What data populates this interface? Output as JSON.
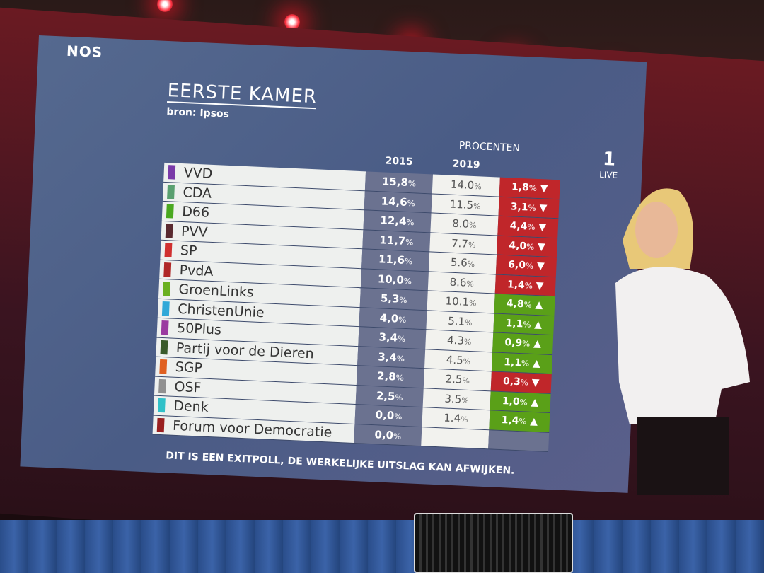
{
  "channel": {
    "logo": "NOS",
    "badge": "LIVE"
  },
  "chart_data": {
    "type": "table",
    "title": "EERSTE KAMER",
    "subtitle": "bron: Ipsos",
    "group_header": "PROCENTEN",
    "columns": [
      "2015",
      "2019"
    ],
    "rows": [
      {
        "party": "VVD",
        "color": "#7a3aa8",
        "y2015": "15,8",
        "y2019": "14.0",
        "diff": "1,8",
        "dir": "down"
      },
      {
        "party": "CDA",
        "color": "#5aa070",
        "y2015": "14,6",
        "y2019": "11.5",
        "diff": "3,1",
        "dir": "down"
      },
      {
        "party": "D66",
        "color": "#4aa820",
        "y2015": "12,4",
        "y2019": "8.0",
        "diff": "4,4",
        "dir": "down"
      },
      {
        "party": "PVV",
        "color": "#5a2a30",
        "y2015": "11,7",
        "y2019": "7.7",
        "diff": "4,0",
        "dir": "down"
      },
      {
        "party": "SP",
        "color": "#d03030",
        "y2015": "11,6",
        "y2019": "5.6",
        "diff": "6,0",
        "dir": "down"
      },
      {
        "party": "PvdA",
        "color": "#b02828",
        "y2015": "10,0",
        "y2019": "8.6",
        "diff": "1,4",
        "dir": "down"
      },
      {
        "party": "GroenLinks",
        "color": "#6ab020",
        "y2015": "5,3",
        "y2019": "10.1",
        "diff": "4,8",
        "dir": "up"
      },
      {
        "party": "ChristenUnie",
        "color": "#30a8d8",
        "y2015": "4,0",
        "y2019": "5.1",
        "diff": "1,1",
        "dir": "up"
      },
      {
        "party": "50Plus",
        "color": "#9a3aa0",
        "y2015": "3,4",
        "y2019": "4.3",
        "diff": "0,9",
        "dir": "up"
      },
      {
        "party": "Partij voor de Dieren",
        "color": "#3a5a2a",
        "y2015": "3,4",
        "y2019": "4.5",
        "diff": "1,1",
        "dir": "up"
      },
      {
        "party": "SGP",
        "color": "#e06020",
        "y2015": "2,8",
        "y2019": "2.5",
        "diff": "0,3",
        "dir": "down"
      },
      {
        "party": "OSF",
        "color": "#909090",
        "y2015": "2,5",
        "y2019": "3.5",
        "diff": "1,0",
        "dir": "up"
      },
      {
        "party": "Denk",
        "color": "#30c0c8",
        "y2015": "0,0",
        "y2019": "1.4",
        "diff": "1,4",
        "dir": "up"
      },
      {
        "party": "Forum voor Democratie",
        "color": "#9a2020",
        "y2015": "0,0",
        "y2019": "",
        "diff": "",
        "dir": "none"
      }
    ],
    "footnote": "DIT IS EEN EXITPOLL, DE WERKELIJKE UITSLAG KAN AFWIJKEN."
  }
}
